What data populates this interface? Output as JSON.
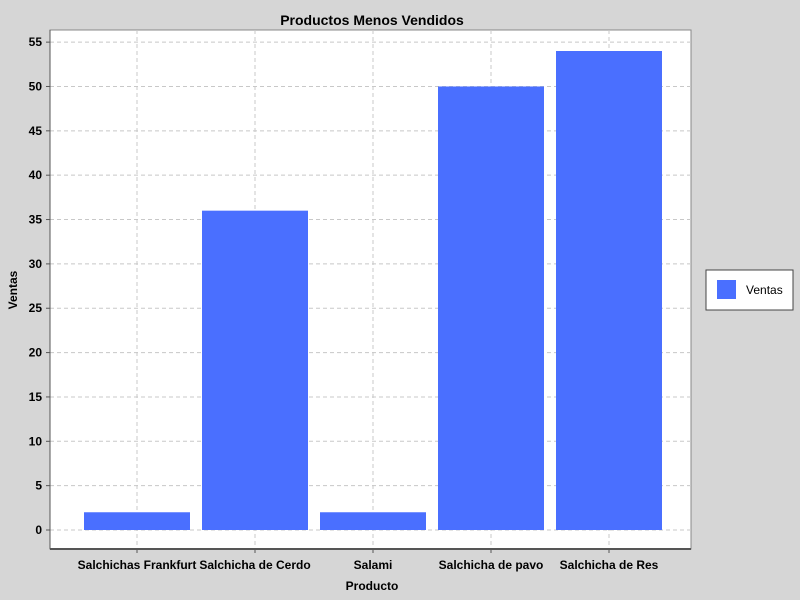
{
  "chart_data": {
    "type": "bar",
    "title": "Productos Menos Vendidos",
    "xlabel": "Producto",
    "ylabel": "Ventas",
    "categories": [
      "Salchichas Frankfurt",
      "Salchicha de Cerdo",
      "Salami",
      "Salchicha de pavo",
      "Salchicha de Res"
    ],
    "series": [
      {
        "name": "Ventas",
        "values": [
          2,
          36,
          2,
          50,
          54
        ],
        "color": "#4a6fff"
      }
    ],
    "ylim": [
      0,
      56
    ],
    "yticks": [
      0,
      5,
      10,
      15,
      20,
      25,
      30,
      35,
      40,
      45,
      50,
      55
    ],
    "grid": true,
    "legend_position": "right"
  },
  "colors": {
    "background": "#d6d6d6",
    "plot_background": "#ffffff",
    "gridline": "#c8c8c8",
    "bar": "#4a6fff"
  }
}
